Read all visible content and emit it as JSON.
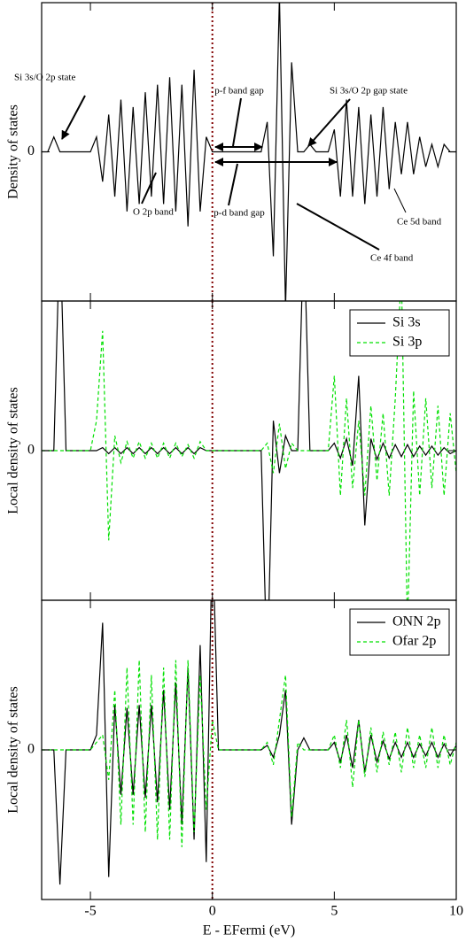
{
  "chart_data": [
    {
      "type": "line",
      "y_label": "Density of states",
      "x": [
        -7,
        -6.75,
        -6.5,
        -6.25,
        -6,
        -5.75,
        -5.5,
        -5.25,
        -5,
        -4.75,
        -4.5,
        -4.25,
        -4,
        -3.75,
        -3.5,
        -3.25,
        -3,
        -2.75,
        -2.5,
        -2.25,
        -2,
        -1.75,
        -1.5,
        -1.25,
        -1,
        -0.75,
        -0.5,
        -0.25,
        0,
        0.25,
        0.5,
        0.75,
        1,
        1.25,
        1.5,
        1.75,
        2,
        2.25,
        2.5,
        2.75,
        3,
        3.25,
        3.5,
        3.75,
        4,
        4.25,
        4.5,
        4.75,
        5,
        5.25,
        5.5,
        5.75,
        6,
        6.25,
        6.5,
        6.75,
        7,
        7.25,
        7.5,
        7.75,
        8,
        8.25,
        8.5,
        8.75,
        9,
        9.25,
        9.5,
        9.75,
        10
      ],
      "series": [
        {
          "color": "#000000",
          "style": "solid",
          "values": [
            0,
            0,
            0.1,
            0,
            0,
            0,
            0,
            0,
            0,
            0.1,
            -0.2,
            0.25,
            -0.3,
            0.35,
            -0.4,
            0.3,
            -0.35,
            0.4,
            -0.3,
            0.45,
            -0.35,
            0.5,
            -0.4,
            0.45,
            -0.5,
            0.55,
            -0.4,
            0.1,
            0,
            0,
            0,
            0,
            0,
            0,
            0,
            0,
            0,
            0.2,
            -0.7,
            1.05,
            -1.05,
            0.6,
            0,
            0,
            0.05,
            0,
            0,
            0,
            0.15,
            -0.3,
            0.35,
            -0.3,
            0.3,
            -0.35,
            0.25,
            -0.3,
            0.3,
            -0.25,
            0.2,
            -0.15,
            0.2,
            -0.15,
            0.1,
            -0.1,
            0.05,
            -0.1,
            0.05,
            0,
            0
          ]
        }
      ],
      "xlim": [
        -7,
        10
      ],
      "ylim": [
        -1,
        1
      ],
      "xticks": [
        -5,
        0,
        5,
        10
      ],
      "yticks": [
        0
      ],
      "reference_x": 0,
      "reference_color": "#800000",
      "annotations": [
        "Si 3s/O 2p state",
        "p-f band gap",
        "Si 3s/O 2p gap state",
        "O 2p band",
        "p-d band gap",
        "Ce 5d band",
        "Ce 4f band"
      ]
    },
    {
      "type": "line",
      "y_label": "Local density of states",
      "x": [
        -7,
        -6.75,
        -6.5,
        -6.25,
        -6,
        -5.75,
        -5.5,
        -5.25,
        -5,
        -4.75,
        -4.5,
        -4.25,
        -4,
        -3.75,
        -3.5,
        -3.25,
        -3,
        -2.75,
        -2.5,
        -2.25,
        -2,
        -1.75,
        -1.5,
        -1.25,
        -1,
        -0.75,
        -0.5,
        -0.25,
        0,
        0.25,
        0.5,
        0.75,
        1,
        1.25,
        1.5,
        1.75,
        2,
        2.25,
        2.5,
        2.75,
        3,
        3.25,
        3.5,
        3.75,
        4,
        4.25,
        4.5,
        4.75,
        5,
        5.25,
        5.5,
        5.75,
        6,
        6.25,
        6.5,
        6.75,
        7,
        7.25,
        7.5,
        7.75,
        8,
        8.25,
        8.5,
        8.75,
        9,
        9.25,
        9.5,
        9.75,
        10
      ],
      "series": [
        {
          "name": "Si 3s",
          "color": "#000000",
          "style": "solid",
          "values": [
            0,
            0,
            0,
            1.5,
            0,
            0,
            0,
            0,
            0,
            0,
            0.02,
            -0.02,
            0.02,
            -0.02,
            0.02,
            -0.02,
            0.02,
            -0.02,
            0.02,
            -0.02,
            0.02,
            -0.02,
            0.02,
            -0.02,
            0.02,
            -0.02,
            0.02,
            0,
            0,
            0,
            0,
            0,
            0,
            0,
            0,
            0,
            0,
            -1.5,
            0.2,
            -0.15,
            0.1,
            0,
            0,
            1.5,
            0,
            0,
            0,
            0,
            0.05,
            -0.05,
            0.08,
            -0.1,
            0.5,
            -0.5,
            0.08,
            -0.06,
            0.05,
            -0.05,
            0.04,
            -0.04,
            0.04,
            -0.04,
            0.03,
            -0.03,
            0.03,
            -0.03,
            0.02,
            -0.02,
            0
          ]
        },
        {
          "name": "Si 3p",
          "color": "#00e000",
          "style": "dashed",
          "values": [
            0,
            0,
            0,
            0,
            0,
            0,
            0,
            0,
            0,
            0.2,
            0.8,
            -0.6,
            0.1,
            -0.08,
            0.06,
            -0.05,
            0.06,
            -0.05,
            0.05,
            -0.05,
            0.05,
            -0.05,
            0.05,
            -0.04,
            0.04,
            -0.05,
            0.06,
            0,
            0,
            0,
            0,
            0,
            0,
            0,
            0,
            0,
            0,
            0.05,
            -0.15,
            0.18,
            -0.12,
            0.05,
            0,
            0,
            0,
            0,
            0,
            0,
            0.5,
            -0.3,
            0.35,
            -0.25,
            0.2,
            -0.3,
            0.3,
            -0.2,
            0.25,
            -0.3,
            0.35,
            1.2,
            -1.2,
            0.4,
            -0.3,
            0.35,
            -0.25,
            0.3,
            -0.3,
            0.25,
            -0.15
          ]
        }
      ],
      "xlim": [
        -7,
        10
      ],
      "ylim": [
        -1,
        1
      ],
      "xticks": [
        -5,
        0,
        5,
        10
      ],
      "yticks": [
        0
      ],
      "reference_x": 0,
      "reference_color": "#800000",
      "legend": "upper right"
    },
    {
      "type": "line",
      "y_label": "Local density of states",
      "x_label": "E - EFermi (eV)",
      "x": [
        -7,
        -6.75,
        -6.5,
        -6.25,
        -6,
        -5.75,
        -5.5,
        -5.25,
        -5,
        -4.75,
        -4.5,
        -4.25,
        -4,
        -3.75,
        -3.5,
        -3.25,
        -3,
        -2.75,
        -2.5,
        -2.25,
        -2,
        -1.75,
        -1.5,
        -1.25,
        -1,
        -0.75,
        -0.5,
        -0.25,
        0,
        0.25,
        0.5,
        0.75,
        1,
        1.25,
        1.5,
        1.75,
        2,
        2.25,
        2.5,
        2.75,
        3,
        3.25,
        3.5,
        3.75,
        4,
        4.25,
        4.5,
        4.75,
        5,
        5.25,
        5.5,
        5.75,
        6,
        6.25,
        6.5,
        6.75,
        7,
        7.25,
        7.5,
        7.75,
        8,
        8.25,
        8.5,
        8.75,
        9,
        9.25,
        9.5,
        9.75,
        10
      ],
      "series": [
        {
          "name": "ONN 2p",
          "color": "#000000",
          "style": "solid",
          "values": [
            0,
            0,
            0,
            -0.9,
            0,
            0,
            0,
            0,
            0,
            0.1,
            0.85,
            -0.85,
            0.3,
            -0.3,
            0.28,
            -0.3,
            0.3,
            -0.32,
            0.3,
            -0.35,
            0.4,
            -0.4,
            0.45,
            -0.5,
            0.55,
            -0.6,
            0.7,
            -0.75,
            1.5,
            0,
            0,
            0,
            0,
            0,
            0,
            0,
            0,
            0.03,
            -0.05,
            0.1,
            0.4,
            -0.5,
            0,
            0.08,
            0,
            0,
            0,
            0,
            0.05,
            -0.08,
            0.1,
            -0.12,
            0.2,
            -0.15,
            0.1,
            -0.08,
            0.06,
            -0.06,
            0.05,
            -0.05,
            0.05,
            -0.05,
            0.04,
            -0.04,
            0.05,
            -0.05,
            0.04,
            -0.04,
            0.03
          ]
        },
        {
          "name": "Ofar 2p",
          "color": "#00e000",
          "style": "dashed",
          "values": [
            0,
            0,
            0,
            0,
            0,
            0,
            0,
            0,
            0,
            0.05,
            0.1,
            -0.2,
            0.4,
            -0.5,
            0.55,
            -0.5,
            0.6,
            -0.55,
            0.5,
            -0.6,
            0.55,
            -0.6,
            0.6,
            -0.65,
            0.6,
            -0.55,
            0.5,
            -0.4,
            0.2,
            0,
            0,
            0,
            0,
            0,
            0,
            0,
            0,
            0.05,
            -0.1,
            0.2,
            0.5,
            -0.45,
            0.05,
            0,
            0,
            0,
            0,
            0,
            0.1,
            -0.12,
            0.2,
            -0.25,
            0.2,
            -0.18,
            0.15,
            -0.15,
            0.12,
            -0.1,
            0.12,
            -0.15,
            0.15,
            -0.12,
            0.1,
            -0.12,
            0.15,
            -0.12,
            0.1,
            -0.1,
            0.05
          ]
        }
      ],
      "xlim": [
        -7,
        10
      ],
      "ylim": [
        -1,
        1
      ],
      "xticks": [
        -5,
        0,
        5,
        10
      ],
      "yticks": [
        0
      ],
      "reference_x": 0,
      "reference_color": "#800000",
      "legend": "upper right",
      "xtick_labels": true
    }
  ]
}
